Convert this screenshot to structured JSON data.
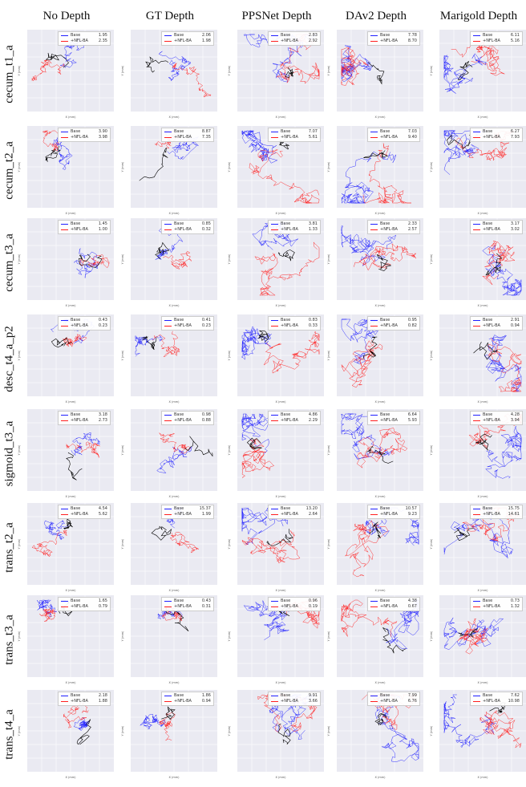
{
  "chart_data": {
    "type": "line",
    "title": "",
    "columns": [
      "No Depth",
      "GT Depth",
      "PPSNet Depth",
      "DAv2 Depth",
      "Marigold Depth"
    ],
    "rows": [
      "cecum_t1_a",
      "cecum_t2_a",
      "cecum_t3_a",
      "desc_t4_a_p2",
      "sigmoid_t3_a",
      "trans_t2_a",
      "trans_t3_a",
      "trans_t4_a"
    ],
    "xlabel": "X (mm)",
    "ylabel": "Y (mm)",
    "legend": {
      "base": "Base",
      "nfl": "+NFL-BA",
      "position": "top-right"
    },
    "series_colors": {
      "gt": "#000000",
      "base": "#1f1fff",
      "nfl": "#ff1f1f"
    },
    "panel_background": "#eaeaf2",
    "values": [
      [
        [
          "1.95",
          "2.35"
        ],
        [
          "2.06",
          "1.98"
        ],
        [
          "2.83",
          "2.92"
        ],
        [
          "7.78",
          "8.70"
        ],
        [
          "6.11",
          "5.16"
        ]
      ],
      [
        [
          "3.90",
          "3.98"
        ],
        [
          "8.87",
          "7.35"
        ],
        [
          "7.07",
          "5.61"
        ],
        [
          "7.03",
          "9.40"
        ],
        [
          "6.27",
          "7.93"
        ]
      ],
      [
        [
          "1.45",
          "1.00"
        ],
        [
          "0.85",
          "0.32"
        ],
        [
          "3.81",
          "1.33"
        ],
        [
          "2.33",
          "2.57"
        ],
        [
          "3.17",
          "3.02"
        ]
      ],
      [
        [
          "0.43",
          "0.23"
        ],
        [
          "0.41",
          "0.23"
        ],
        [
          "0.83",
          "0.33"
        ],
        [
          "0.95",
          "0.82"
        ],
        [
          "2.91",
          "0.94"
        ]
      ],
      [
        [
          "3.18",
          "2.73"
        ],
        [
          "0.98",
          "0.88"
        ],
        [
          "4.86",
          "2.29"
        ],
        [
          "6.64",
          "5.93"
        ],
        [
          "4.28",
          "3.94"
        ]
      ],
      [
        [
          "4.54",
          "5.62"
        ],
        [
          "15.37",
          "1.99"
        ],
        [
          "13.20",
          "2.64"
        ],
        [
          "10.57",
          "9.23"
        ],
        [
          "15.75",
          "14.61"
        ]
      ],
      [
        [
          "1.65",
          "0.79"
        ],
        [
          "0.43",
          "0.31"
        ],
        [
          "0.96",
          "0.19"
        ],
        [
          "4.38",
          "0.67"
        ],
        [
          "0.73",
          "1.32"
        ]
      ],
      [
        [
          "2.18",
          "1.88"
        ],
        [
          "1.86",
          "0.94"
        ],
        [
          "9.91",
          "3.66"
        ],
        [
          "7.99",
          "6.76"
        ],
        [
          "7.62",
          "10.98"
        ]
      ]
    ]
  }
}
